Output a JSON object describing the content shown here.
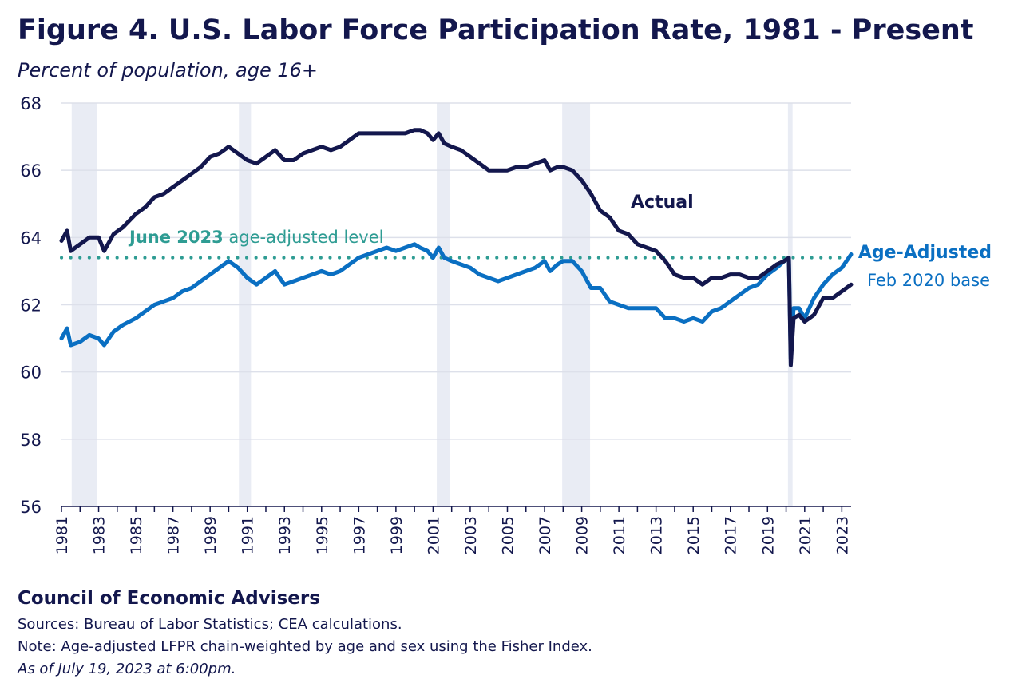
{
  "header": {
    "title": "Figure 4. U.S. Labor Force Participation Rate, 1981 - Present",
    "subtitle": "Percent of population, age 16+"
  },
  "footer": {
    "organization": "Council of Economic Advisers",
    "sources": "Sources: Bureau of Labor Statistics; CEA calculations.",
    "note": "Note: Age-adjusted LFPR chain-weighted by age and sex using the Fisher Index.",
    "asof": "As of July 19, 2023 at 6:00pm."
  },
  "colors": {
    "actual": "#13174d",
    "age_adjusted": "#0a6fc2",
    "reference": "#2e9c93",
    "recession": "#e9ecf4",
    "grid": "#dde0ea"
  },
  "chart_data": {
    "type": "line",
    "title": "Figure 4. U.S. Labor Force Participation Rate, 1981 - Present",
    "ylabel": "Percent of population, age 16+",
    "ylim": [
      56,
      68
    ],
    "yticks": [
      56,
      58,
      60,
      62,
      64,
      66,
      68
    ],
    "xlim": [
      1981,
      2023.5
    ],
    "xticks": [
      "1981",
      "1983",
      "1985",
      "1987",
      "1989",
      "1991",
      "1993",
      "1995",
      "1997",
      "1999",
      "2001",
      "2003",
      "2005",
      "2007",
      "2009",
      "2011",
      "2013",
      "2015",
      "2017",
      "2019",
      "2021",
      "2023"
    ],
    "grid": "horizontal",
    "recessions": [
      [
        1981.55,
        1982.9
      ],
      [
        1990.55,
        1991.2
      ],
      [
        2001.2,
        2001.9
      ],
      [
        2007.95,
        2009.45
      ],
      [
        2020.1,
        2020.35
      ]
    ],
    "reference_line": {
      "value": 63.4,
      "label_bold": "June 2023",
      "label_rest": " age-adjusted level"
    },
    "series": [
      {
        "name": "Actual",
        "points": [
          [
            1981.0,
            63.9
          ],
          [
            1981.3,
            64.2
          ],
          [
            1981.5,
            63.6
          ],
          [
            1982.0,
            63.8
          ],
          [
            1982.5,
            64.0
          ],
          [
            1983.0,
            64.0
          ],
          [
            1983.3,
            63.6
          ],
          [
            1983.8,
            64.1
          ],
          [
            1984.3,
            64.3
          ],
          [
            1985.0,
            64.7
          ],
          [
            1985.5,
            64.9
          ],
          [
            1986.0,
            65.2
          ],
          [
            1986.5,
            65.3
          ],
          [
            1987.0,
            65.5
          ],
          [
            1987.5,
            65.7
          ],
          [
            1988.0,
            65.9
          ],
          [
            1988.5,
            66.1
          ],
          [
            1989.0,
            66.4
          ],
          [
            1989.5,
            66.5
          ],
          [
            1990.0,
            66.7
          ],
          [
            1990.5,
            66.5
          ],
          [
            1991.0,
            66.3
          ],
          [
            1991.5,
            66.2
          ],
          [
            1992.0,
            66.4
          ],
          [
            1992.5,
            66.6
          ],
          [
            1993.0,
            66.3
          ],
          [
            1993.5,
            66.3
          ],
          [
            1994.0,
            66.5
          ],
          [
            1994.5,
            66.6
          ],
          [
            1995.0,
            66.7
          ],
          [
            1995.5,
            66.6
          ],
          [
            1996.0,
            66.7
          ],
          [
            1996.5,
            66.9
          ],
          [
            1997.0,
            67.1
          ],
          [
            1997.5,
            67.1
          ],
          [
            1998.0,
            67.1
          ],
          [
            1998.5,
            67.1
          ],
          [
            1999.0,
            67.1
          ],
          [
            1999.5,
            67.1
          ],
          [
            2000.0,
            67.2
          ],
          [
            2000.3,
            67.2
          ],
          [
            2000.7,
            67.1
          ],
          [
            2001.0,
            66.9
          ],
          [
            2001.3,
            67.1
          ],
          [
            2001.6,
            66.8
          ],
          [
            2002.0,
            66.7
          ],
          [
            2002.5,
            66.6
          ],
          [
            2003.0,
            66.4
          ],
          [
            2003.5,
            66.2
          ],
          [
            2004.0,
            66.0
          ],
          [
            2004.5,
            66.0
          ],
          [
            2005.0,
            66.0
          ],
          [
            2005.5,
            66.1
          ],
          [
            2006.0,
            66.1
          ],
          [
            2006.5,
            66.2
          ],
          [
            2007.0,
            66.3
          ],
          [
            2007.3,
            66.0
          ],
          [
            2007.7,
            66.1
          ],
          [
            2008.0,
            66.1
          ],
          [
            2008.5,
            66.0
          ],
          [
            2009.0,
            65.7
          ],
          [
            2009.5,
            65.3
          ],
          [
            2010.0,
            64.8
          ],
          [
            2010.5,
            64.6
          ],
          [
            2011.0,
            64.2
          ],
          [
            2011.5,
            64.1
          ],
          [
            2012.0,
            63.8
          ],
          [
            2012.5,
            63.7
          ],
          [
            2013.0,
            63.6
          ],
          [
            2013.5,
            63.3
          ],
          [
            2014.0,
            62.9
          ],
          [
            2014.5,
            62.8
          ],
          [
            2015.0,
            62.8
          ],
          [
            2015.5,
            62.6
          ],
          [
            2016.0,
            62.8
          ],
          [
            2016.5,
            62.8
          ],
          [
            2017.0,
            62.9
          ],
          [
            2017.5,
            62.9
          ],
          [
            2018.0,
            62.8
          ],
          [
            2018.5,
            62.8
          ],
          [
            2019.0,
            63.0
          ],
          [
            2019.5,
            63.2
          ],
          [
            2019.9,
            63.3
          ],
          [
            2020.15,
            63.4
          ],
          [
            2020.25,
            60.2
          ],
          [
            2020.4,
            61.6
          ],
          [
            2020.7,
            61.7
          ],
          [
            2021.0,
            61.5
          ],
          [
            2021.5,
            61.7
          ],
          [
            2022.0,
            62.2
          ],
          [
            2022.5,
            62.2
          ],
          [
            2023.0,
            62.4
          ],
          [
            2023.5,
            62.6
          ]
        ]
      },
      {
        "name": "Age-Adjusted",
        "subname": "Feb 2020 base",
        "points": [
          [
            1981.0,
            61.0
          ],
          [
            1981.3,
            61.3
          ],
          [
            1981.5,
            60.8
          ],
          [
            1982.0,
            60.9
          ],
          [
            1982.5,
            61.1
          ],
          [
            1983.0,
            61.0
          ],
          [
            1983.3,
            60.8
          ],
          [
            1983.8,
            61.2
          ],
          [
            1984.3,
            61.4
          ],
          [
            1985.0,
            61.6
          ],
          [
            1985.5,
            61.8
          ],
          [
            1986.0,
            62.0
          ],
          [
            1986.5,
            62.1
          ],
          [
            1987.0,
            62.2
          ],
          [
            1987.5,
            62.4
          ],
          [
            1988.0,
            62.5
          ],
          [
            1988.5,
            62.7
          ],
          [
            1989.0,
            62.9
          ],
          [
            1989.5,
            63.1
          ],
          [
            1990.0,
            63.3
          ],
          [
            1990.5,
            63.1
          ],
          [
            1991.0,
            62.8
          ],
          [
            1991.5,
            62.6
          ],
          [
            1992.0,
            62.8
          ],
          [
            1992.5,
            63.0
          ],
          [
            1993.0,
            62.6
          ],
          [
            1993.5,
            62.7
          ],
          [
            1994.0,
            62.8
          ],
          [
            1994.5,
            62.9
          ],
          [
            1995.0,
            63.0
          ],
          [
            1995.5,
            62.9
          ],
          [
            1996.0,
            63.0
          ],
          [
            1996.5,
            63.2
          ],
          [
            1997.0,
            63.4
          ],
          [
            1997.5,
            63.5
          ],
          [
            1998.0,
            63.6
          ],
          [
            1998.5,
            63.7
          ],
          [
            1999.0,
            63.6
          ],
          [
            1999.5,
            63.7
          ],
          [
            2000.0,
            63.8
          ],
          [
            2000.3,
            63.7
          ],
          [
            2000.7,
            63.6
          ],
          [
            2001.0,
            63.4
          ],
          [
            2001.3,
            63.7
          ],
          [
            2001.6,
            63.4
          ],
          [
            2002.0,
            63.3
          ],
          [
            2002.5,
            63.2
          ],
          [
            2003.0,
            63.1
          ],
          [
            2003.5,
            62.9
          ],
          [
            2004.0,
            62.8
          ],
          [
            2004.5,
            62.7
          ],
          [
            2005.0,
            62.8
          ],
          [
            2005.5,
            62.9
          ],
          [
            2006.0,
            63.0
          ],
          [
            2006.5,
            63.1
          ],
          [
            2007.0,
            63.3
          ],
          [
            2007.3,
            63.0
          ],
          [
            2007.7,
            63.2
          ],
          [
            2008.0,
            63.3
          ],
          [
            2008.5,
            63.3
          ],
          [
            2009.0,
            63.0
          ],
          [
            2009.5,
            62.5
          ],
          [
            2010.0,
            62.5
          ],
          [
            2010.5,
            62.1
          ],
          [
            2011.0,
            62.0
          ],
          [
            2011.5,
            61.9
          ],
          [
            2012.0,
            61.9
          ],
          [
            2012.5,
            61.9
          ],
          [
            2013.0,
            61.9
          ],
          [
            2013.5,
            61.6
          ],
          [
            2014.0,
            61.6
          ],
          [
            2014.5,
            61.5
          ],
          [
            2015.0,
            61.6
          ],
          [
            2015.5,
            61.5
          ],
          [
            2016.0,
            61.8
          ],
          [
            2016.5,
            61.9
          ],
          [
            2017.0,
            62.1
          ],
          [
            2017.5,
            62.3
          ],
          [
            2018.0,
            62.5
          ],
          [
            2018.5,
            62.6
          ],
          [
            2019.0,
            62.9
          ],
          [
            2019.5,
            63.1
          ],
          [
            2019.9,
            63.3
          ],
          [
            2020.15,
            63.4
          ],
          [
            2020.25,
            60.4
          ],
          [
            2020.4,
            61.9
          ],
          [
            2020.7,
            61.9
          ],
          [
            2021.0,
            61.6
          ],
          [
            2021.5,
            62.2
          ],
          [
            2022.0,
            62.6
          ],
          [
            2022.5,
            62.9
          ],
          [
            2023.0,
            63.1
          ],
          [
            2023.5,
            63.5
          ]
        ]
      }
    ]
  }
}
